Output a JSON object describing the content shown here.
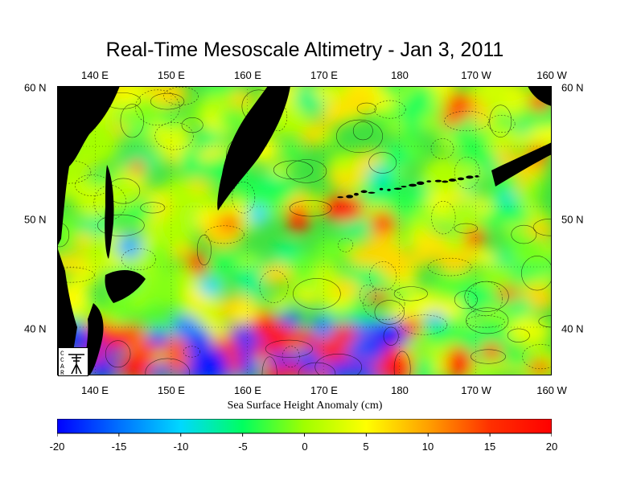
{
  "title": "Real-Time Mesoscale Altimetry - Jan 3, 2011",
  "lon_labels": [
    "140 E",
    "150 E",
    "160 E",
    "170 E",
    "180",
    "170 W",
    "160 W"
  ],
  "lat_labels": [
    "60 N",
    "50 N",
    "40 N"
  ],
  "colorbar": {
    "label": "Sea Surface Height Anomaly (cm)",
    "ticks": [
      "-20",
      "-15",
      "-10",
      "-5",
      "0",
      "5",
      "10",
      "15",
      "20"
    ],
    "min": -20,
    "max": 20,
    "colors": [
      "#0000ff",
      "#0070ff",
      "#00d8ff",
      "#00ff60",
      "#a0ff00",
      "#ffff00",
      "#ffa000",
      "#ff3000",
      "#ff0000"
    ]
  },
  "map_extent": {
    "lon_min": 135,
    "lon_max": 200,
    "lat_min": 36,
    "lat_max": 60
  },
  "land_color": "#000000",
  "logo_letters": [
    "C",
    "C",
    "A",
    "R"
  ]
}
